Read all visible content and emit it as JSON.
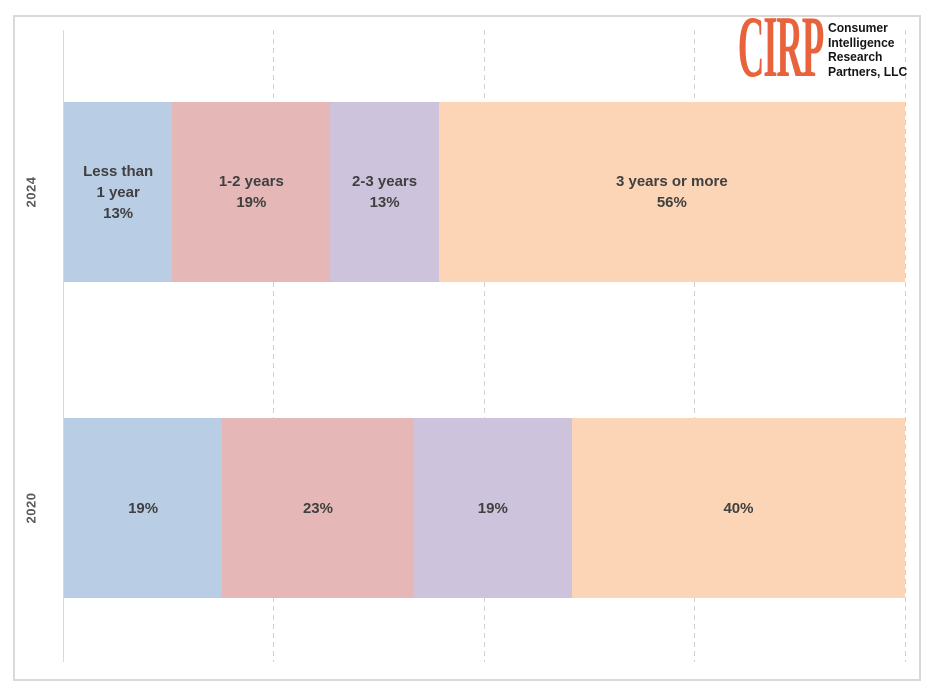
{
  "logo": {
    "acronym": "CIRP",
    "acronym_color": "#E8623B",
    "name_lines": [
      "Consumer",
      "Intelligence",
      "Research",
      "Partners, LLC"
    ]
  },
  "chart_data": {
    "type": "bar",
    "subtype": "horizontal-100pct-stacked",
    "categories": [
      "2024",
      "2020"
    ],
    "series": [
      {
        "name": "Less than 1 year",
        "color": "#B9CDE5",
        "values": [
          13,
          19
        ]
      },
      {
        "name": "1-2 years",
        "color": "#E5B8B7",
        "values": [
          19,
          23
        ]
      },
      {
        "name": "2-3 years",
        "color": "#CDC3DC",
        "values": [
          13,
          19
        ]
      },
      {
        "name": "3 years or more",
        "color": "#FBD5B5",
        "values": [
          56,
          40
        ]
      }
    ],
    "segment_labels": [
      [
        "Less than\n1 year\n13%",
        "1-2 years\n19%",
        "2-3 years\n13%",
        "3 years or more\n56%"
      ],
      [
        "19%",
        "23%",
        "19%",
        "40%"
      ]
    ],
    "title": "",
    "xlabel": "",
    "ylabel": "",
    "x_axis": {
      "range_pct": [
        0,
        100
      ],
      "gridlines_pct": [
        25,
        50,
        75,
        100
      ],
      "gridline_style": "dashed"
    },
    "legend": "none",
    "label_text_color": "#404040",
    "axis_label_color": "#595959",
    "gridline_color": "#D2D2D2"
  }
}
